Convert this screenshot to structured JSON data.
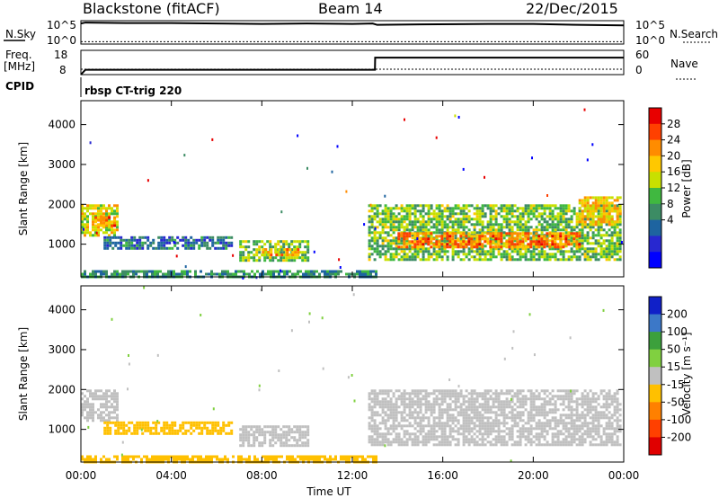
{
  "header": {
    "title": "Blackstone (fitACF)",
    "beam": "Beam 14",
    "date": "22/Dec/2015"
  },
  "top_panels": {
    "noise": {
      "left_label": "N.Sky",
      "right_label": "N.Search",
      "left_ticks": [
        "10^5",
        "10^0"
      ],
      "right_ticks": [
        "10^5",
        "10^0"
      ]
    },
    "freq": {
      "left_label_1": "Freq.",
      "left_label_2": "[MHz]",
      "right_label": "Nave",
      "left_ticks": [
        "18",
        "8"
      ],
      "right_ticks": [
        "60",
        "0"
      ]
    },
    "cpid_label": "CPID",
    "program": "rbsp CT-trig 220"
  },
  "colorbars": {
    "power": {
      "label": "Power [dB]",
      "ticks": [
        "28",
        "24",
        "20",
        "16",
        "12",
        "8",
        "4"
      ],
      "colors": [
        "#e80000",
        "#ff4000",
        "#ff8c00",
        "#ffc800",
        "#c8e000",
        "#40b840",
        "#3c8c64",
        "#1e64a0",
        "#2828d0",
        "#0000ff"
      ]
    },
    "velocity": {
      "label": "Velocity [m s⁻¹]",
      "ticks": [
        "200",
        "100",
        "50",
        "15",
        "-15",
        "-50",
        "-100",
        "-200"
      ],
      "colors": [
        "#1020c8",
        "#3c78c8",
        "#3ca03c",
        "#80d040",
        "#c0c0c0",
        "#ffc000",
        "#ff8000",
        "#ff4000",
        "#e00000"
      ]
    }
  },
  "chart_data": [
    {
      "type": "line",
      "panel": "noise",
      "x_range": [
        0,
        24
      ],
      "series": [
        {
          "name": "N.Sky",
          "x": [
            0,
            0.2,
            2,
            4,
            6,
            8,
            10,
            12,
            12.9,
            13.1,
            15,
            18,
            20,
            22,
            24
          ],
          "y": [
            4.4,
            4.6,
            4.5,
            4.5,
            4.4,
            4.3,
            4.4,
            4.3,
            4.4,
            4.1,
            4.2,
            4.3,
            4.3,
            4.1,
            4.0
          ]
        },
        {
          "name": "N.Search",
          "x": [
            0,
            24
          ],
          "y": [
            0.5,
            0.5
          ]
        }
      ]
    },
    {
      "type": "line",
      "panel": "frequency",
      "x_range": [
        0,
        24
      ],
      "series": [
        {
          "name": "Freq.",
          "x": [
            0,
            0.2,
            13,
            13.01,
            24
          ],
          "y": [
            8,
            10,
            10,
            15,
            15
          ]
        },
        {
          "name": "Nave",
          "x": [
            0,
            24
          ],
          "y": [
            0,
            0
          ]
        }
      ]
    },
    {
      "type": "heatmap",
      "panel": "power",
      "xlabel": "",
      "ylabel": "Slant Range [km]",
      "x_range": [
        0,
        24
      ],
      "ylim": [
        180,
        4600
      ],
      "yticks": [
        1000,
        2000,
        3000,
        4000
      ],
      "x_ticks": [
        "00:00",
        "04:00",
        "08:00",
        "12:00",
        "16:00",
        "20:00",
        "00:00"
      ],
      "x_tick_values": [
        0,
        4,
        8,
        12,
        16,
        20,
        24
      ],
      "regions": [
        {
          "x": [
            0.0,
            1.6
          ],
          "y": [
            1200,
            2000
          ],
          "value": 18
        },
        {
          "x": [
            0.6,
            1.5
          ],
          "y": [
            1450,
            1700
          ],
          "value": 24
        },
        {
          "x": [
            1.0,
            6.7
          ],
          "y": [
            900,
            1200
          ],
          "value": 8
        },
        {
          "x": [
            7.0,
            10.0
          ],
          "y": [
            600,
            1100
          ],
          "value": 14
        },
        {
          "x": [
            8.0,
            9.6
          ],
          "y": [
            700,
            900
          ],
          "value": 22
        },
        {
          "x": [
            0.0,
            13.0
          ],
          "y": [
            180,
            350
          ],
          "value": 10
        },
        {
          "x": [
            12.7,
            23.9
          ],
          "y": [
            600,
            2000
          ],
          "value": 14
        },
        {
          "x": [
            14.0,
            22.0
          ],
          "y": [
            900,
            1300
          ],
          "value": 24
        },
        {
          "x": [
            22.0,
            23.9
          ],
          "y": [
            1500,
            2200
          ],
          "value": 20
        }
      ]
    },
    {
      "type": "heatmap",
      "panel": "velocity",
      "xlabel": "Time UT",
      "ylabel": "Slant Range [km]",
      "x_range": [
        0,
        24
      ],
      "ylim": [
        180,
        4600
      ],
      "yticks": [
        1000,
        2000,
        3000,
        4000
      ],
      "x_ticks": [
        "00:00",
        "04:00",
        "08:00",
        "12:00",
        "16:00",
        "20:00",
        "00:00"
      ],
      "x_tick_values": [
        0,
        4,
        8,
        12,
        16,
        20,
        24
      ],
      "regions": [
        {
          "x": [
            0.0,
            1.6
          ],
          "y": [
            1200,
            2000
          ],
          "value": 0
        },
        {
          "x": [
            1.0,
            6.7
          ],
          "y": [
            900,
            1200
          ],
          "value": -40
        },
        {
          "x": [
            7.0,
            10.0
          ],
          "y": [
            600,
            1100
          ],
          "value": 0
        },
        {
          "x": [
            0.0,
            13.0
          ],
          "y": [
            180,
            350
          ],
          "value": -30
        },
        {
          "x": [
            12.7,
            23.9
          ],
          "y": [
            600,
            2000
          ],
          "value": 0
        }
      ]
    }
  ]
}
